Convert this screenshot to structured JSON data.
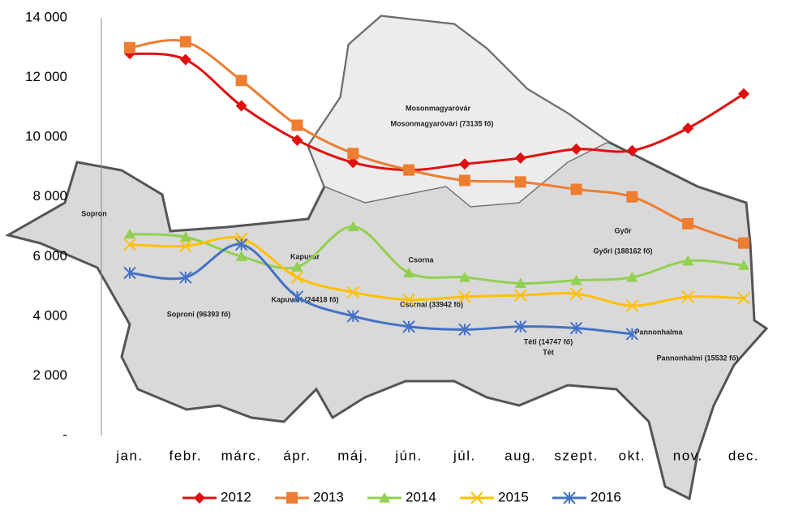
{
  "chart_data": {
    "type": "line",
    "smooth": true,
    "categories": [
      "jan.",
      "febr.",
      "márc.",
      "ápr.",
      "máj.",
      "jún.",
      "júl.",
      "aug.",
      "szept.",
      "okt.",
      "nov.",
      "dec."
    ],
    "ylim": [
      0,
      14000
    ],
    "yticks": [
      {
        "value": 0,
        "label": "-"
      },
      {
        "value": 2000,
        "label": "2 000"
      },
      {
        "value": 4000,
        "label": "4 000"
      },
      {
        "value": 6000,
        "label": "6 000"
      },
      {
        "value": 8000,
        "label": "8 000"
      },
      {
        "value": 10000,
        "label": "10 000"
      },
      {
        "value": 12000,
        "label": "12 000"
      },
      {
        "value": 14000,
        "label": "14 000"
      }
    ],
    "grid": false,
    "legend": "bottom",
    "series": [
      {
        "name": "2012",
        "color": "#e01010",
        "marker": "diamond",
        "values": [
          12800,
          12600,
          11050,
          9900,
          9150,
          8900,
          9100,
          9300,
          9600,
          9550,
          10300,
          11450
        ]
      },
      {
        "name": "2013",
        "color": "#ed7d31",
        "marker": "square",
        "values": [
          13000,
          13200,
          11900,
          10400,
          9450,
          8900,
          8550,
          8500,
          8250,
          8000,
          7100,
          6450
        ]
      },
      {
        "name": "2014",
        "color": "#92d050",
        "marker": "triangle",
        "values": [
          6750,
          6650,
          6000,
          5650,
          7000,
          5450,
          5300,
          5100,
          5200,
          5300,
          5850,
          5700
        ]
      },
      {
        "name": "2015",
        "color": "#ffc000",
        "marker": "x",
        "values": [
          6400,
          6350,
          6600,
          5300,
          4800,
          4550,
          4650,
          4700,
          4750,
          4350,
          4650,
          4600
        ]
      },
      {
        "name": "2016",
        "color": "#4472c4",
        "marker": "star",
        "values": [
          5450,
          5300,
          6400,
          4650,
          4000,
          3650,
          3550,
          3650,
          3600,
          3400,
          null,
          null
        ]
      }
    ],
    "map_labels": [
      "Mosonmagyaróvár",
      "Mosonmagyaróvári (73135 fő)",
      "Sopron",
      "Soproni (96393 fő)",
      "Kapuvár",
      "Kapuvári (24418 fő)",
      "Csorna",
      "Csornai (33942 fő)",
      "Győr",
      "Győri (188162 fő)",
      "Téti (14747 fő)",
      "Tét",
      "Pannonhalma",
      "Pannonhalmi (15532 fő)"
    ]
  }
}
